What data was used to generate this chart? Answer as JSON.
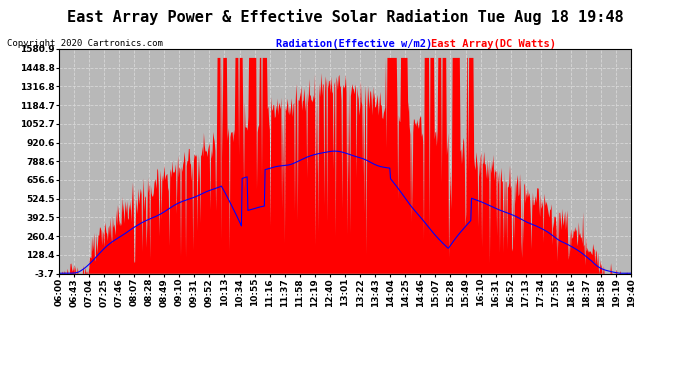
{
  "title": "East Array Power & Effective Solar Radiation Tue Aug 18 19:48",
  "copyright": "Copyright 2020 Cartronics.com",
  "legend_radiation": "Radiation(Effective w/m2)",
  "legend_east_array": "East Array(DC Watts)",
  "legend_radiation_color": "blue",
  "legend_east_array_color": "red",
  "ymin": -3.7,
  "ymax": 1580.9,
  "yticks": [
    -3.7,
    128.4,
    260.4,
    392.5,
    524.5,
    656.6,
    788.6,
    920.6,
    1052.7,
    1184.7,
    1316.8,
    1448.8,
    1580.9
  ],
  "background_color": "#ffffff",
  "plot_bg_color": "#b8b8b8",
  "grid_color": "#d8d8d8",
  "fill_color": "red",
  "line_color": "blue",
  "title_fontsize": 11,
  "copyright_fontsize": 6.5,
  "tick_label_fontsize": 6.5
}
